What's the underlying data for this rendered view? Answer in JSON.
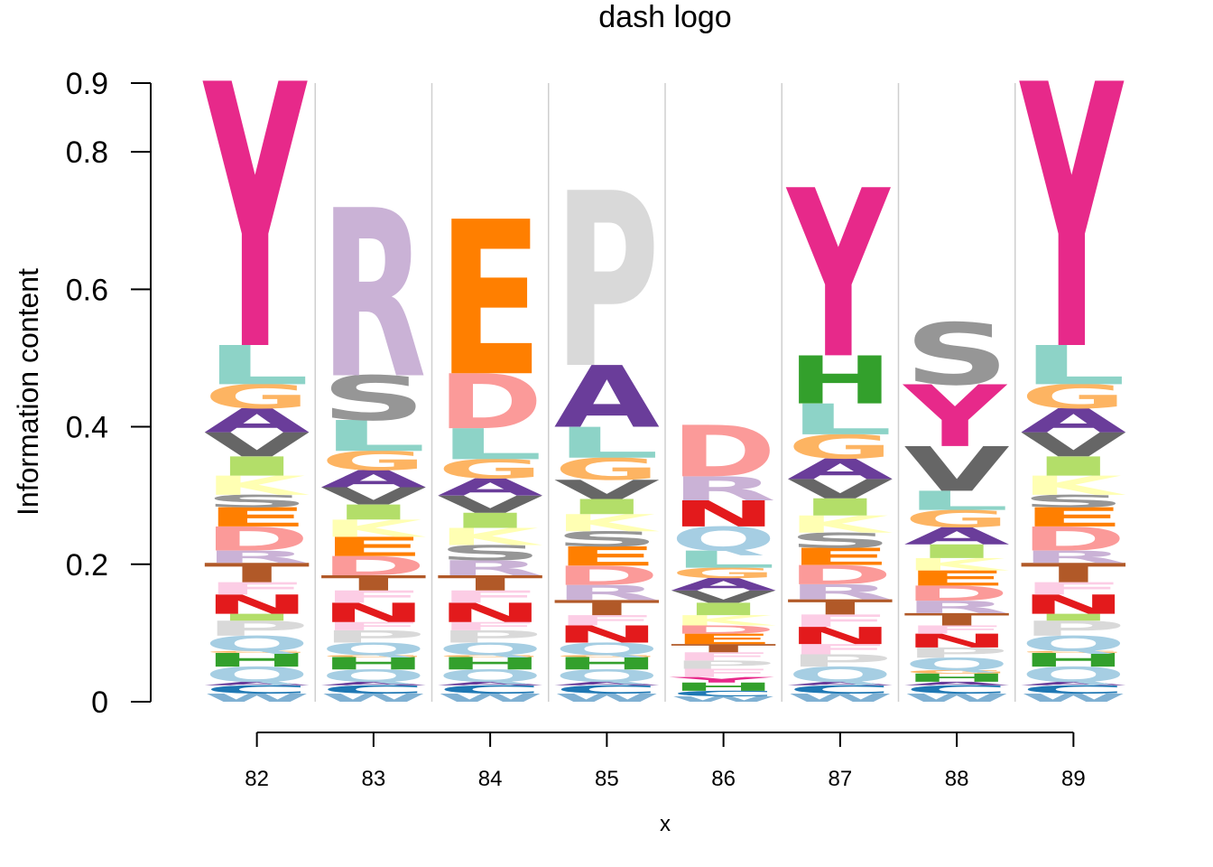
{
  "chart_data": {
    "type": "sequence-logo",
    "title": "dash logo",
    "xlabel": "x",
    "ylabel": "Information content",
    "ylim": [
      0,
      0.9
    ],
    "yticks": [
      "0",
      "0.2",
      "0.4",
      "0.6",
      "0.8",
      "0.9"
    ],
    "positions": [
      "82",
      "83",
      "84",
      "85",
      "86",
      "87",
      "88",
      "89"
    ],
    "letter_colors": {
      "A": "#6a3d9a",
      "C": "#1f78b4",
      "D": "#fb9a99",
      "E": "#ff7f00",
      "F": "#fccde5",
      "G": "#fdb462",
      "H": "#33a02c",
      "I": "#b3de69",
      "K": "#ffffb3",
      "L": "#8dd3c7",
      "M": "#bc80bd",
      "N": "#e31a1c",
      "P": "#d9d9d9",
      "Q": "#a6cee3",
      "R": "#cab2d6",
      "S": "#969696",
      "T": "#b15928",
      "V": "#666666",
      "W": "#80b1d3",
      "Y": "#e7298a"
    },
    "columns": [
      {
        "position": "82",
        "stack": [
          [
            "W",
            0.012
          ],
          [
            "C",
            0.012
          ],
          [
            "A",
            0.005
          ],
          [
            "Q",
            0.022
          ],
          [
            "H",
            0.02
          ],
          [
            "G",
            0.003
          ],
          [
            "Q",
            0.022
          ],
          [
            "P",
            0.022
          ],
          [
            "I",
            0.01
          ],
          [
            "N",
            0.028
          ],
          [
            "F",
            0.018
          ],
          [
            "T",
            0.028
          ],
          [
            "R",
            0.018
          ],
          [
            "D",
            0.035
          ],
          [
            "E",
            0.028
          ],
          [
            "S",
            0.018
          ],
          [
            "K",
            0.028
          ],
          [
            "I",
            0.028
          ],
          [
            "V",
            0.035
          ],
          [
            "A",
            0.035
          ],
          [
            "G",
            0.035
          ],
          [
            "L",
            0.057
          ],
          [
            "Y",
            0.385
          ]
        ]
      },
      {
        "position": "83",
        "stack": [
          [
            "W",
            0.012
          ],
          [
            "C",
            0.012
          ],
          [
            "A",
            0.005
          ],
          [
            "Q",
            0.018
          ],
          [
            "H",
            0.018
          ],
          [
            "G",
            0.003
          ],
          [
            "Q",
            0.018
          ],
          [
            "P",
            0.018
          ],
          [
            "F",
            0.012
          ],
          [
            "N",
            0.028
          ],
          [
            "F",
            0.018
          ],
          [
            "T",
            0.022
          ],
          [
            "D",
            0.028
          ],
          [
            "E",
            0.028
          ],
          [
            "K",
            0.025
          ],
          [
            "I",
            0.022
          ],
          [
            "V",
            0.025
          ],
          [
            "A",
            0.025
          ],
          [
            "G",
            0.028
          ],
          [
            "L",
            0.045
          ],
          [
            "S",
            0.065
          ],
          [
            "R",
            0.245
          ]
        ]
      },
      {
        "position": "84",
        "stack": [
          [
            "W",
            0.012
          ],
          [
            "C",
            0.012
          ],
          [
            "A",
            0.005
          ],
          [
            "Q",
            0.018
          ],
          [
            "H",
            0.018
          ],
          [
            "G",
            0.003
          ],
          [
            "Q",
            0.018
          ],
          [
            "P",
            0.018
          ],
          [
            "F",
            0.012
          ],
          [
            "N",
            0.028
          ],
          [
            "F",
            0.018
          ],
          [
            "T",
            0.022
          ],
          [
            "R",
            0.022
          ],
          [
            "S",
            0.022
          ],
          [
            "K",
            0.025
          ],
          [
            "I",
            0.022
          ],
          [
            "V",
            0.025
          ],
          [
            "A",
            0.025
          ],
          [
            "G",
            0.028
          ],
          [
            "L",
            0.045
          ],
          [
            "D",
            0.08
          ],
          [
            "E",
            0.225
          ]
        ]
      },
      {
        "position": "85",
        "stack": [
          [
            "W",
            0.012
          ],
          [
            "C",
            0.012
          ],
          [
            "A",
            0.005
          ],
          [
            "Q",
            0.018
          ],
          [
            "H",
            0.018
          ],
          [
            "G",
            0.003
          ],
          [
            "Q",
            0.018
          ],
          [
            "N",
            0.025
          ],
          [
            "F",
            0.015
          ],
          [
            "T",
            0.022
          ],
          [
            "R",
            0.022
          ],
          [
            "D",
            0.028
          ],
          [
            "E",
            0.028
          ],
          [
            "S",
            0.022
          ],
          [
            "K",
            0.025
          ],
          [
            "I",
            0.022
          ],
          [
            "V",
            0.028
          ],
          [
            "G",
            0.032
          ],
          [
            "L",
            0.045
          ],
          [
            "A",
            0.09
          ],
          [
            "P",
            0.255
          ]
        ]
      },
      {
        "position": "86",
        "stack": [
          [
            "W",
            0.008
          ],
          [
            "C",
            0.008
          ],
          [
            "H",
            0.012
          ],
          [
            "Y",
            0.008
          ],
          [
            "F",
            0.012
          ],
          [
            "P",
            0.012
          ],
          [
            "F",
            0.012
          ],
          [
            "T",
            0.012
          ],
          [
            "E",
            0.015
          ],
          [
            "D",
            0.012
          ],
          [
            "K",
            0.015
          ],
          [
            "I",
            0.018
          ],
          [
            "V",
            0.018
          ],
          [
            "A",
            0.018
          ],
          [
            "G",
            0.015
          ],
          [
            "L",
            0.025
          ],
          [
            "Q",
            0.035
          ],
          [
            "N",
            0.038
          ],
          [
            "R",
            0.035
          ],
          [
            "D",
            0.075
          ]
        ]
      },
      {
        "position": "87",
        "stack": [
          [
            "W",
            0.012
          ],
          [
            "C",
            0.012
          ],
          [
            "A",
            0.005
          ],
          [
            "Q",
            0.022
          ],
          [
            "P",
            0.018
          ],
          [
            "F",
            0.015
          ],
          [
            "N",
            0.025
          ],
          [
            "F",
            0.018
          ],
          [
            "T",
            0.022
          ],
          [
            "R",
            0.022
          ],
          [
            "D",
            0.028
          ],
          [
            "E",
            0.025
          ],
          [
            "S",
            0.022
          ],
          [
            "K",
            0.025
          ],
          [
            "I",
            0.025
          ],
          [
            "V",
            0.028
          ],
          [
            "A",
            0.03
          ],
          [
            "G",
            0.035
          ],
          [
            "L",
            0.045
          ],
          [
            "H",
            0.07
          ],
          [
            "Y",
            0.245
          ]
        ]
      },
      {
        "position": "88",
        "stack": [
          [
            "W",
            0.012
          ],
          [
            "C",
            0.012
          ],
          [
            "A",
            0.005
          ],
          [
            "H",
            0.012
          ],
          [
            "G",
            0.005
          ],
          [
            "Q",
            0.018
          ],
          [
            "P",
            0.015
          ],
          [
            "N",
            0.02
          ],
          [
            "F",
            0.012
          ],
          [
            "T",
            0.018
          ],
          [
            "R",
            0.018
          ],
          [
            "D",
            0.022
          ],
          [
            "E",
            0.022
          ],
          [
            "K",
            0.018
          ],
          [
            "I",
            0.02
          ],
          [
            "A",
            0.025
          ],
          [
            "G",
            0.025
          ],
          [
            "L",
            0.028
          ],
          [
            "V",
            0.065
          ],
          [
            "Y",
            0.09
          ],
          [
            "S",
            0.09
          ]
        ]
      },
      {
        "position": "89",
        "stack": [
          [
            "W",
            0.012
          ],
          [
            "C",
            0.012
          ],
          [
            "A",
            0.005
          ],
          [
            "Q",
            0.022
          ],
          [
            "H",
            0.02
          ],
          [
            "G",
            0.003
          ],
          [
            "Q",
            0.022
          ],
          [
            "P",
            0.022
          ],
          [
            "I",
            0.01
          ],
          [
            "N",
            0.028
          ],
          [
            "F",
            0.018
          ],
          [
            "T",
            0.028
          ],
          [
            "R",
            0.018
          ],
          [
            "D",
            0.035
          ],
          [
            "E",
            0.028
          ],
          [
            "S",
            0.018
          ],
          [
            "K",
            0.028
          ],
          [
            "I",
            0.028
          ],
          [
            "V",
            0.035
          ],
          [
            "A",
            0.035
          ],
          [
            "G",
            0.035
          ],
          [
            "L",
            0.057
          ],
          [
            "Y",
            0.385
          ]
        ]
      }
    ]
  }
}
